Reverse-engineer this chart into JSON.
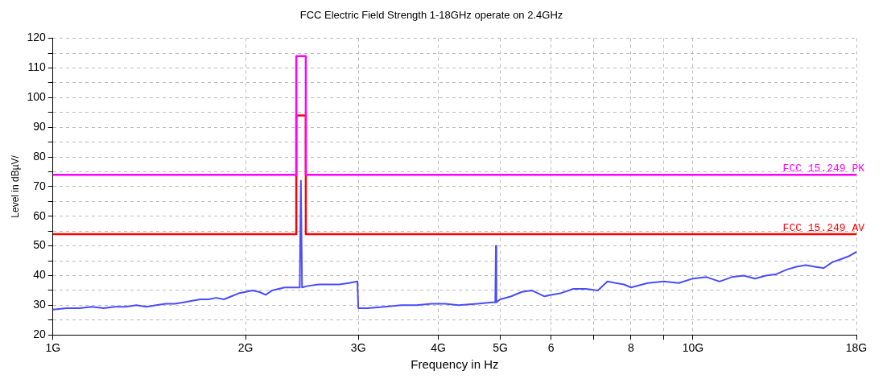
{
  "chart_data": {
    "type": "line",
    "title": "FCC Electric Field Strength 1-18GHz operate on 2.4GHz",
    "xlabel": "Frequency in Hz",
    "ylabel": "Level in dBµV/",
    "log": "x",
    "grid": true,
    "legend": false,
    "marker": "none",
    "line_style": "solid",
    "xlim": [
      1,
      18
    ],
    "ylim": [
      20,
      120
    ],
    "xticks": [
      {
        "value": 1,
        "label": "1G"
      },
      {
        "value": 2,
        "label": "2G"
      },
      {
        "value": 3,
        "label": "3G"
      },
      {
        "value": 4,
        "label": "4G"
      },
      {
        "value": 5,
        "label": "5G"
      },
      6,
      {
        "value": 7,
        "label": null
      },
      8,
      {
        "value": 9,
        "label": null
      },
      {
        "value": 10,
        "label": "10G"
      },
      {
        "value": 18,
        "label": "18G"
      }
    ],
    "yticks": [
      20,
      {
        "value": 25,
        "label": null
      },
      30,
      {
        "value": 35,
        "label": null
      },
      40,
      {
        "value": 45,
        "label": null
      },
      50,
      {
        "value": 55,
        "label": null
      },
      60,
      {
        "value": 65,
        "label": null
      },
      70,
      {
        "value": 75,
        "label": null
      },
      80,
      {
        "value": 85,
        "label": null
      },
      90,
      {
        "value": 95,
        "label": null
      },
      100,
      {
        "value": 105,
        "label": null
      },
      110,
      {
        "value": 115,
        "label": null
      },
      120
    ],
    "series": [
      {
        "color": "#4b4bff",
        "x": [
          1,
          1.05,
          1.1,
          1.15,
          1.2,
          1.25,
          1.3,
          1.35,
          1.4,
          1.45,
          1.5,
          1.55,
          1.6,
          1.65,
          1.7,
          1.75,
          1.8,
          1.85,
          1.9,
          1.95,
          2,
          2.05,
          2.1,
          2.15,
          2.2,
          2.3,
          2.43,
          2.44,
          2.45,
          2.5,
          2.6,
          2.7,
          2.8,
          2.9,
          2.99,
          3,
          3.1,
          3.3,
          3.5,
          3.7,
          3.9,
          4.1,
          4.3,
          4.6,
          4.85,
          4.91,
          4.92,
          4.93,
          5,
          5.2,
          5.4,
          5.6,
          5.86,
          6,
          6.2,
          6.5,
          6.8,
          7.1,
          7.35,
          7.8,
          8,
          8.5,
          9,
          9.5,
          10,
          10.5,
          11,
          11.5,
          12,
          12.5,
          13,
          13.5,
          14,
          14.5,
          15,
          15.5,
          16,
          16.5,
          17,
          17.5,
          18
        ],
        "values": [
          28.5,
          29,
          29,
          29.5,
          29,
          29.5,
          29.5,
          30,
          29.5,
          30,
          30.5,
          30.5,
          31,
          31.5,
          32,
          32,
          32.5,
          32,
          33,
          34,
          34.5,
          35,
          34.5,
          33.5,
          35,
          36,
          36,
          72,
          36,
          36.5,
          37,
          37,
          37,
          37.5,
          38,
          29,
          29,
          29.5,
          30,
          30,
          30.5,
          30.5,
          30,
          30.5,
          31,
          31,
          50,
          31,
          32,
          33,
          34.5,
          35,
          33,
          33.5,
          34,
          35.5,
          35.5,
          35,
          38,
          37,
          36,
          37.5,
          38,
          37.5,
          39,
          39.5,
          38,
          39.5,
          40,
          39,
          40,
          40.5,
          42,
          43,
          43.5,
          43,
          42.5,
          44.5,
          45.5,
          46.5,
          48
        ]
      },
      {
        "name": "FCC 15.249 AV",
        "color": "#ff0000",
        "x": [
          1,
          2.4,
          2.4,
          2.4835,
          2.4835,
          18
        ],
        "values": [
          54,
          54,
          94,
          94,
          54,
          54
        ]
      },
      {
        "name": "FCC 15.249 PK",
        "color": "#ff00ff",
        "x": [
          1,
          2.4,
          2.4,
          2.4835,
          2.4835,
          18
        ],
        "values": [
          74,
          74,
          114,
          114,
          74,
          74
        ]
      }
    ]
  }
}
